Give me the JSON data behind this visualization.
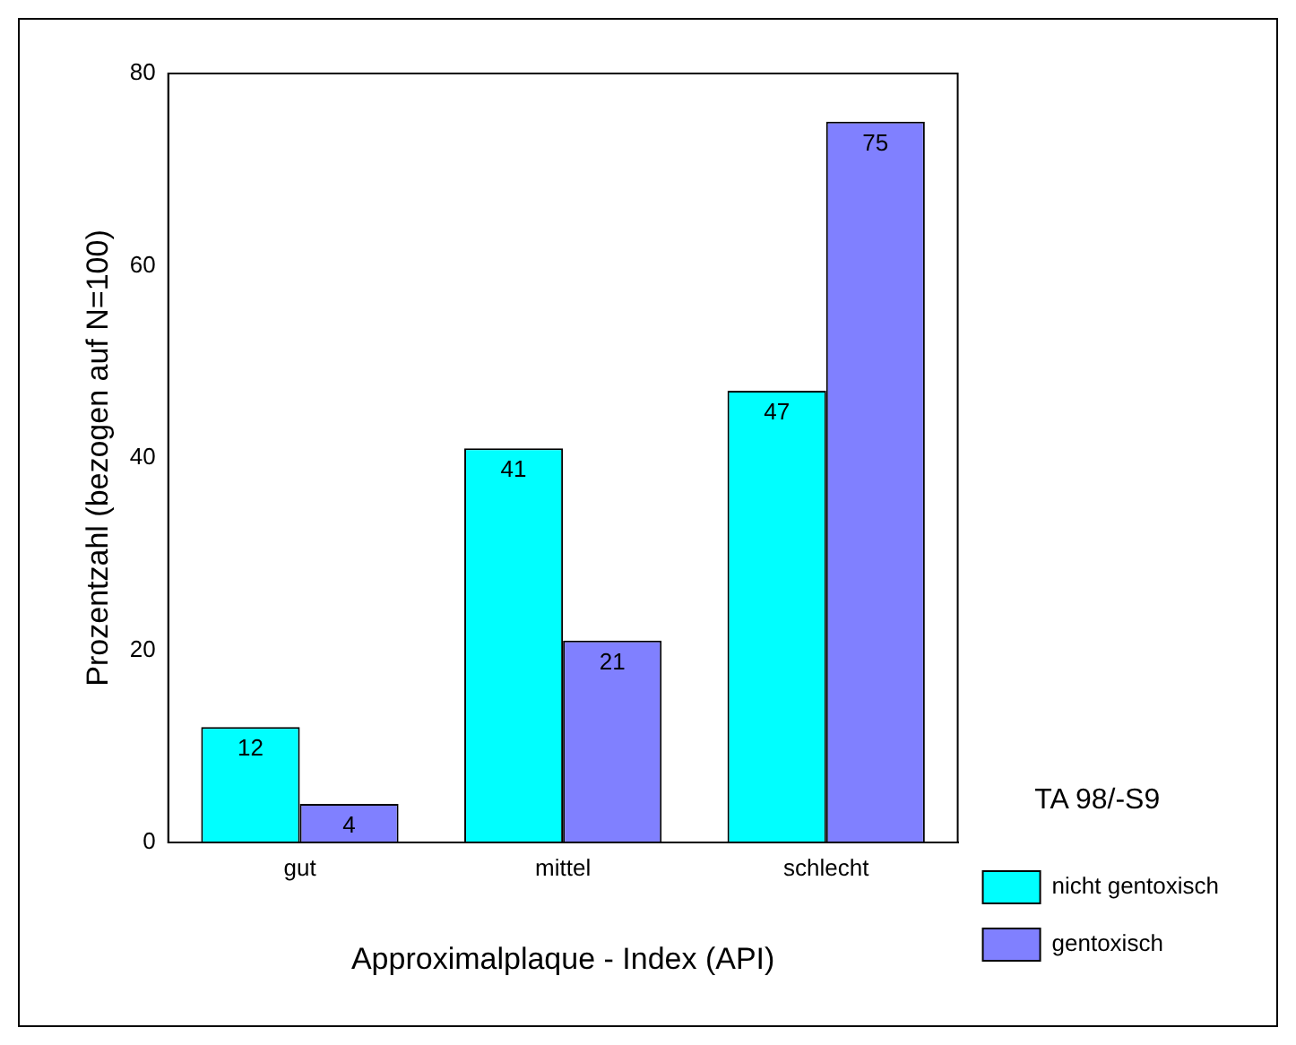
{
  "chart_data": {
    "type": "bar",
    "xlabel": "Approximalplaque - Index (API)",
    "ylabel": "Prozentzahl (bezogen auf N=100)",
    "legend_title": "TA 98/-S9",
    "categories": [
      "gut",
      "mittel",
      "schlecht"
    ],
    "series": [
      {
        "name": "nicht gentoxisch",
        "color": "#00ffff",
        "values": [
          12,
          41,
          47
        ]
      },
      {
        "name": "gentoxisch",
        "color": "#8080ff",
        "values": [
          4,
          21,
          75
        ]
      }
    ],
    "ylim": [
      0,
      80
    ],
    "yticks": [
      0,
      20,
      40,
      60,
      80
    ],
    "grid": false,
    "legend": "bottom right",
    "data_labels": true
  }
}
